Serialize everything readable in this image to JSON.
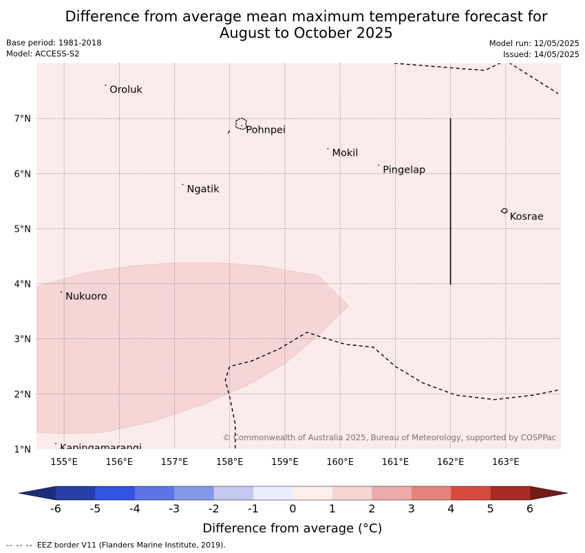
{
  "header": {
    "title_line1": "Difference from average mean maximum temperature forecast for",
    "title_line2": "August to October 2025",
    "base_period": "Base period: 1981-2018",
    "model": "Model: ACCESS-S2",
    "model_run": "Model run: 12/05/2025",
    "issued": "Issued: 14/05/2025"
  },
  "map": {
    "lon_labels": [
      "155°E",
      "156°E",
      "157°E",
      "158°E",
      "159°E",
      "160°E",
      "161°E",
      "162°E",
      "163°E"
    ],
    "lat_labels": [
      "7°N",
      "6°N",
      "5°N",
      "4°N",
      "3°N",
      "2°N",
      "1°N"
    ],
    "places": [
      {
        "name": "Oroluk",
        "lon": 155.75,
        "lat": 7.6
      },
      {
        "name": "Pohnpei",
        "lon": 158.22,
        "lat": 6.87
      },
      {
        "name": "Mokil",
        "lon": 159.78,
        "lat": 6.45
      },
      {
        "name": "Pingelap",
        "lon": 160.7,
        "lat": 6.15
      },
      {
        "name": "Ngatik",
        "lon": 157.15,
        "lat": 5.8
      },
      {
        "name": "Kosrae",
        "lon": 163.0,
        "lat": 5.3
      },
      {
        "name": "Nukuoro",
        "lon": 154.95,
        "lat": 3.85
      },
      {
        "name": "Kapingamarangi",
        "lon": 154.85,
        "lat": 1.1
      }
    ],
    "copyright": "© Commonwealth of Australia 2025, Bureau of Meteorology, supported by COSPPac",
    "background_color": "#fbebea",
    "anomaly_region_color": "#f5d6d4"
  },
  "colorbar": {
    "tick_labels": [
      "-6",
      "-5",
      "-4",
      "-3",
      "-2",
      "-1",
      "0",
      "1",
      "2",
      "3",
      "4",
      "5",
      "6"
    ],
    "colors": [
      "#273fa6",
      "#3252e0",
      "#5b75e6",
      "#8598ea",
      "#c3c9f2",
      "#ebedfc",
      "#fdeeed",
      "#f5d6d4",
      "#edaaa8",
      "#e5827c",
      "#d84a3e",
      "#a92a25"
    ],
    "under_color": "#1c2d7a",
    "over_color": "#731b18",
    "label": "Difference from average (°C)"
  },
  "footer": {
    "legend_symbol": "-- -- --",
    "legend_text": "EEZ border V11 (Flanders Marine Institute, 2019)."
  }
}
